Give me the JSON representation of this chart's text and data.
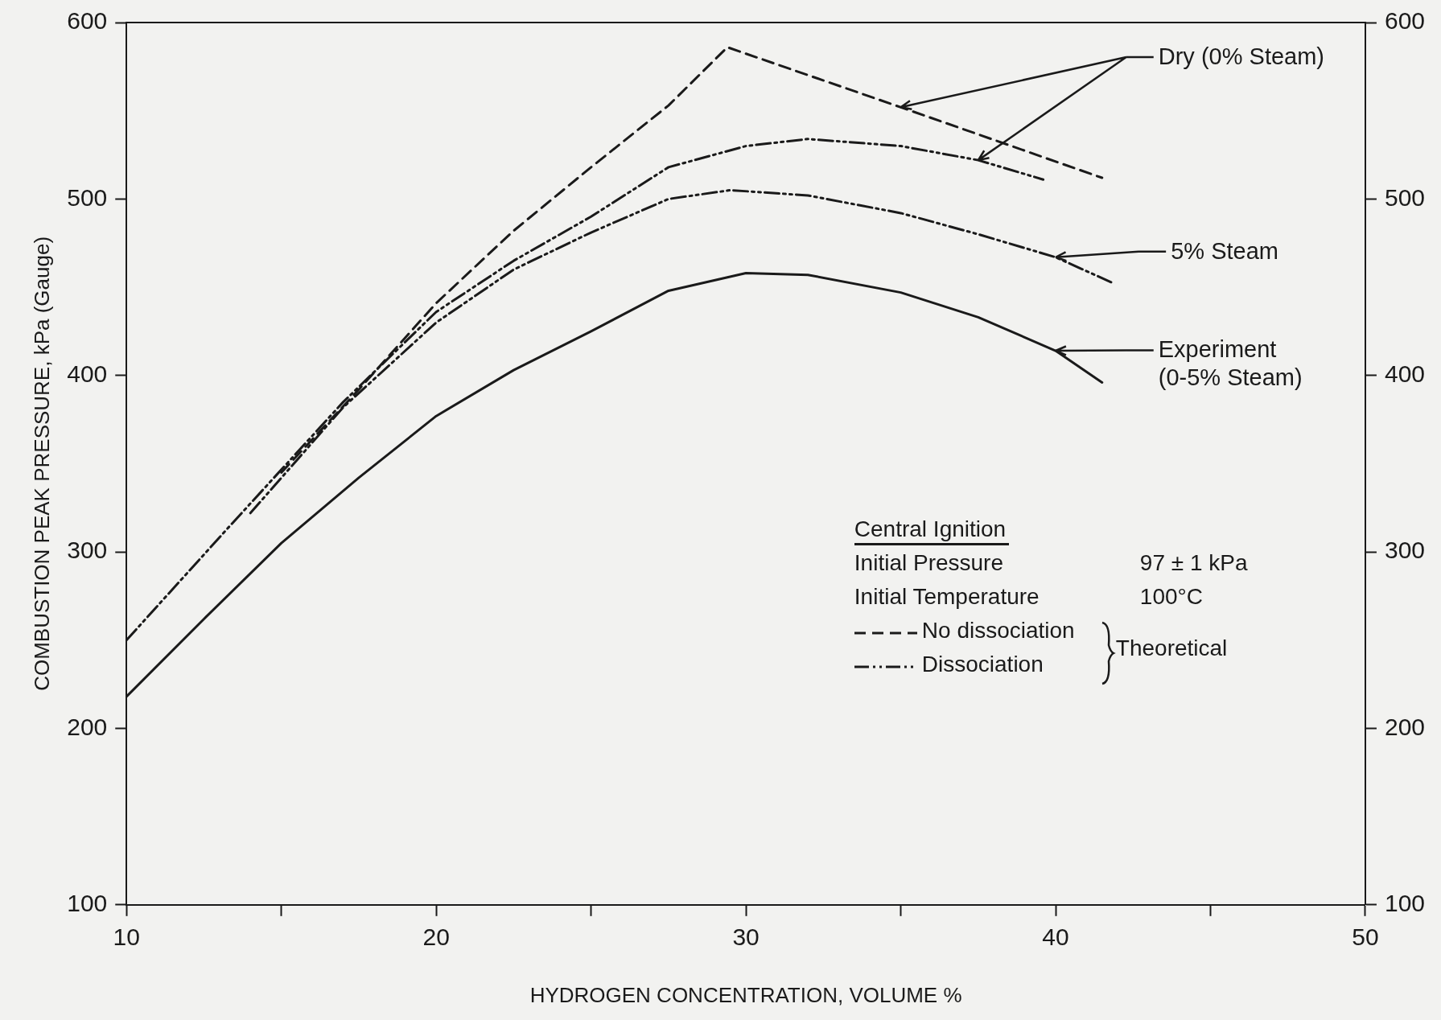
{
  "chart_data": {
    "type": "line",
    "xlabel": "HYDROGEN CONCENTRATION, VOLUME %",
    "ylabel": "COMBUSTION PEAK PRESSURE, kPa (Gauge)",
    "xlim": [
      10,
      50
    ],
    "xticks": [
      10,
      {
        "value": 15,
        "label": null
      },
      20,
      {
        "value": 25,
        "label": null
      },
      30,
      {
        "value": 35,
        "label": null
      },
      40,
      {
        "value": 45,
        "label": null
      },
      50
    ],
    "ylim": [
      100,
      600
    ],
    "yticks": [
      100,
      200,
      300,
      400,
      500,
      600
    ],
    "y2lim": [
      100,
      600
    ],
    "y2ticks": [
      100,
      200,
      300,
      400,
      500,
      600
    ],
    "grid": false,
    "legend": false,
    "marker": "none",
    "series": [
      {
        "color": "#1a1a1a",
        "line_style": "dashed",
        "x": [
          15,
          17.5,
          20,
          22.5,
          25,
          27.5,
          29.4,
          35,
          41.5
        ],
        "values": [
          345,
          392,
          441,
          482,
          518,
          553,
          586,
          552,
          512
        ]
      },
      {
        "color": "#1a1a1a",
        "line_style": "dotted",
        "x": [
          10,
          13.3,
          17,
          20,
          22.5,
          25,
          27.5,
          30,
          32,
          35,
          37.5,
          39.6
        ],
        "values": [
          250,
          314,
          385,
          436,
          465,
          490,
          518,
          530,
          534,
          530,
          522,
          511
        ]
      },
      {
        "color": "#1a1a1a",
        "line_style": "dotted",
        "x": [
          14,
          17,
          20,
          22.5,
          25,
          27.5,
          29.5,
          32,
          35,
          37.5,
          40,
          41.9
        ],
        "values": [
          322,
          382,
          430,
          460,
          481,
          500,
          505,
          502,
          492,
          480,
          467,
          452
        ]
      },
      {
        "color": "#1a1a1a",
        "line_style": "solid",
        "x": [
          10,
          12.5,
          15,
          17.5,
          20,
          22.5,
          25,
          27.5,
          30,
          32,
          35,
          37.5,
          40,
          41.5
        ],
        "values": [
          218,
          262,
          305,
          342,
          377,
          403,
          425,
          448,
          458,
          457,
          447,
          433,
          414,
          396
        ]
      }
    ],
    "annotations": [
      "Dry (0% Steam)",
      "5% Steam",
      "Experiment\n(0-5% Steam)",
      "Central Ignition",
      "Initial Pressure",
      "97 ± 1 kPa",
      "Initial Temperature",
      "100°C",
      "No dissociation",
      "Dissociation",
      "Theoretical"
    ]
  }
}
